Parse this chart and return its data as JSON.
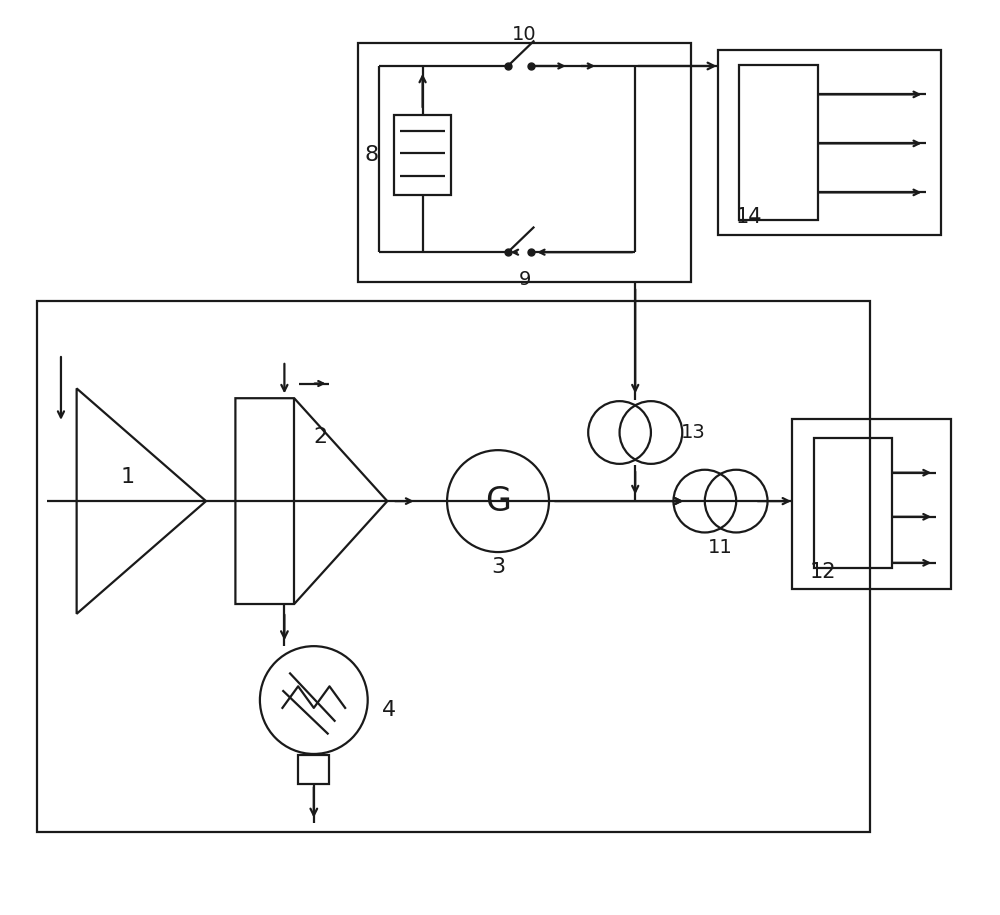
{
  "bg": "#ffffff",
  "lc": "#1a1a1a",
  "lw": 1.6,
  "figsize": [
    10.0,
    9.15
  ],
  "dpi": 100
}
